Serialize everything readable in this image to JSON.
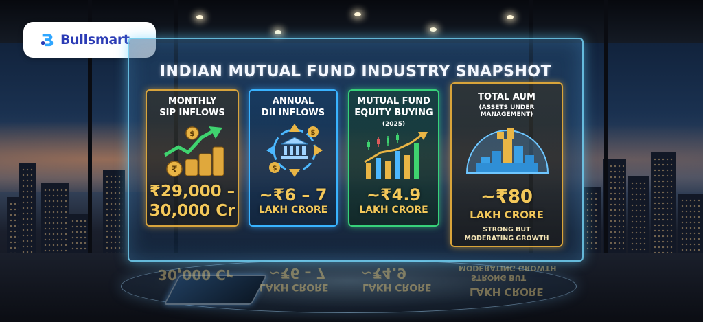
{
  "brand": {
    "name": "Bullsmart"
  },
  "title": "INDIAN MUTUAL FUND INDUSTRY SNAPSHOT",
  "cards": [
    {
      "label_line1": "MONTHLY",
      "label_line2": "SIP INFLOWS",
      "value_line1": "₹29,000 –",
      "value_line2": "30,000 Cr"
    },
    {
      "label_line1": "ANNUAL",
      "label_line2": "DII INFLOWS",
      "value": "~₹6 – 7",
      "unit": "LAKH CRORE"
    },
    {
      "label_line1": "MUTUAL FUND",
      "label_line2": "EQUITY BUYING",
      "sub": "(2025)",
      "value": "~₹4.9",
      "unit": "LAKH CRORE"
    },
    {
      "label_line1": "TOTAL AUM",
      "sub": "(ASSETS UNDER MANAGEMENT)",
      "value": "~₹80",
      "unit": "LAKH CRORE",
      "note_line1": "STRONG BUT",
      "note_line2": "MODERATING GROWTH"
    }
  ],
  "reflection": {
    "r1": "30,000 Cr",
    "r2": "LAKH CRORE",
    "r3": "~₹6 – 7",
    "r4": "LAKH CRORE",
    "r5": "~₹4.9",
    "r6": "STRONG BUT",
    "r7": "MODERATING GROWTH",
    "r8": "LAKH CRORE"
  },
  "icons": {
    "logo": "bullsmart-logo-icon",
    "card1": "coins-growth-arrow-icon",
    "card2": "bank-flow-arrows-icon",
    "card3": "candlestick-bar-chart-icon",
    "card4": "globe-blocks-icon"
  },
  "colors": {
    "gold": "#f3c85a",
    "cyan": "#39b3ff",
    "green": "#37d17a",
    "brand_blue": "#2b3bb5"
  }
}
